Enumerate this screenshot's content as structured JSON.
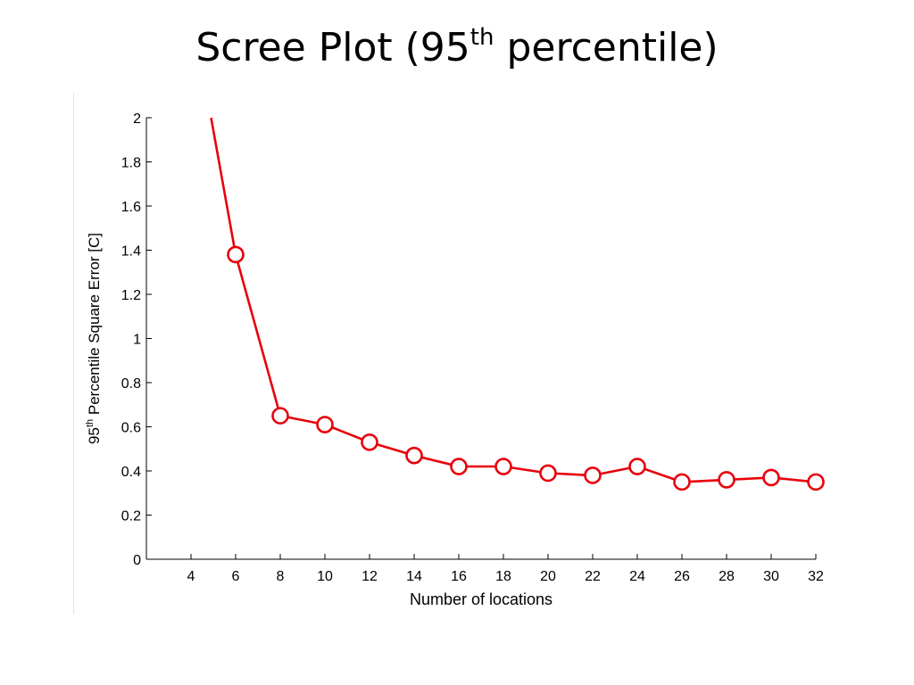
{
  "slide": {
    "title_main": "Scree Plot (95",
    "title_sup": "th",
    "title_tail": " percentile)"
  },
  "chart_data": {
    "type": "line",
    "title": "Scree Plot (95th percentile)",
    "xlabel": "Number of locations",
    "ylabel_prefix": "95",
    "ylabel_sup": "th",
    "ylabel_rest": " Percentile Square Error [C]",
    "xlim": [
      2,
      32
    ],
    "ylim": [
      0,
      2
    ],
    "x_ticks": [
      4,
      6,
      8,
      10,
      12,
      14,
      16,
      18,
      20,
      22,
      24,
      26,
      28,
      30,
      32
    ],
    "y_ticks": [
      0,
      0.2,
      0.4,
      0.6,
      0.8,
      1,
      1.2,
      1.4,
      1.6,
      1.8,
      2
    ],
    "y_tick_labels": [
      "0",
      "0.2",
      "0.4",
      "0.6",
      "0.8",
      "1",
      "1.2",
      "1.4",
      "1.6",
      "1.8",
      "2"
    ],
    "grid": false,
    "line_start": {
      "x": 4.9,
      "y": 2.0
    },
    "series": [
      {
        "color": "#e8000b",
        "marker": "open-circle",
        "x": [
          6,
          8,
          10,
          12,
          14,
          16,
          18,
          20,
          22,
          24,
          26,
          28,
          30,
          32
        ],
        "y": [
          1.38,
          0.65,
          0.61,
          0.53,
          0.47,
          0.42,
          0.42,
          0.39,
          0.38,
          0.42,
          0.35,
          0.36,
          0.37,
          0.35
        ]
      }
    ]
  }
}
